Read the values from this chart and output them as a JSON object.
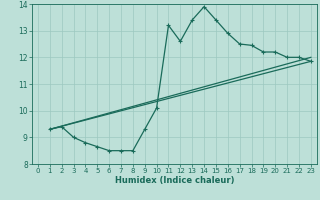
{
  "xlabel": "Humidex (Indice chaleur)",
  "ylabel": "",
  "xlim": [
    -0.5,
    23.5
  ],
  "ylim": [
    8,
    14
  ],
  "xticks": [
    0,
    1,
    2,
    3,
    4,
    5,
    6,
    7,
    8,
    9,
    10,
    11,
    12,
    13,
    14,
    15,
    16,
    17,
    18,
    19,
    20,
    21,
    22,
    23
  ],
  "yticks": [
    8,
    9,
    10,
    11,
    12,
    13,
    14
  ],
  "background_color": "#bde0d8",
  "grid_color": "#9dc8c0",
  "line_color": "#1a6b5a",
  "tick_fontsize": 5.0,
  "xlabel_fontsize": 6.0,
  "curves": [
    {
      "x": [
        1,
        2,
        3,
        4,
        5,
        6,
        7,
        8,
        9,
        10,
        11,
        12,
        13,
        14,
        15,
        16,
        17,
        18,
        19,
        20,
        21,
        22,
        23
      ],
      "y": [
        9.3,
        9.4,
        9.0,
        8.8,
        8.65,
        8.5,
        8.5,
        8.5,
        9.3,
        10.1,
        13.2,
        12.6,
        13.4,
        13.9,
        13.4,
        12.9,
        12.5,
        12.45,
        12.2,
        12.2,
        12.0,
        12.0,
        11.85
      ],
      "marker": "+",
      "markersize": 3.5,
      "linewidth": 0.9
    },
    {
      "x": [
        1,
        23
      ],
      "y": [
        9.3,
        12.0
      ],
      "marker": null,
      "markersize": 0,
      "linewidth": 0.9
    },
    {
      "x": [
        1,
        23
      ],
      "y": [
        9.3,
        11.85
      ],
      "marker": null,
      "markersize": 0,
      "linewidth": 0.9
    }
  ]
}
